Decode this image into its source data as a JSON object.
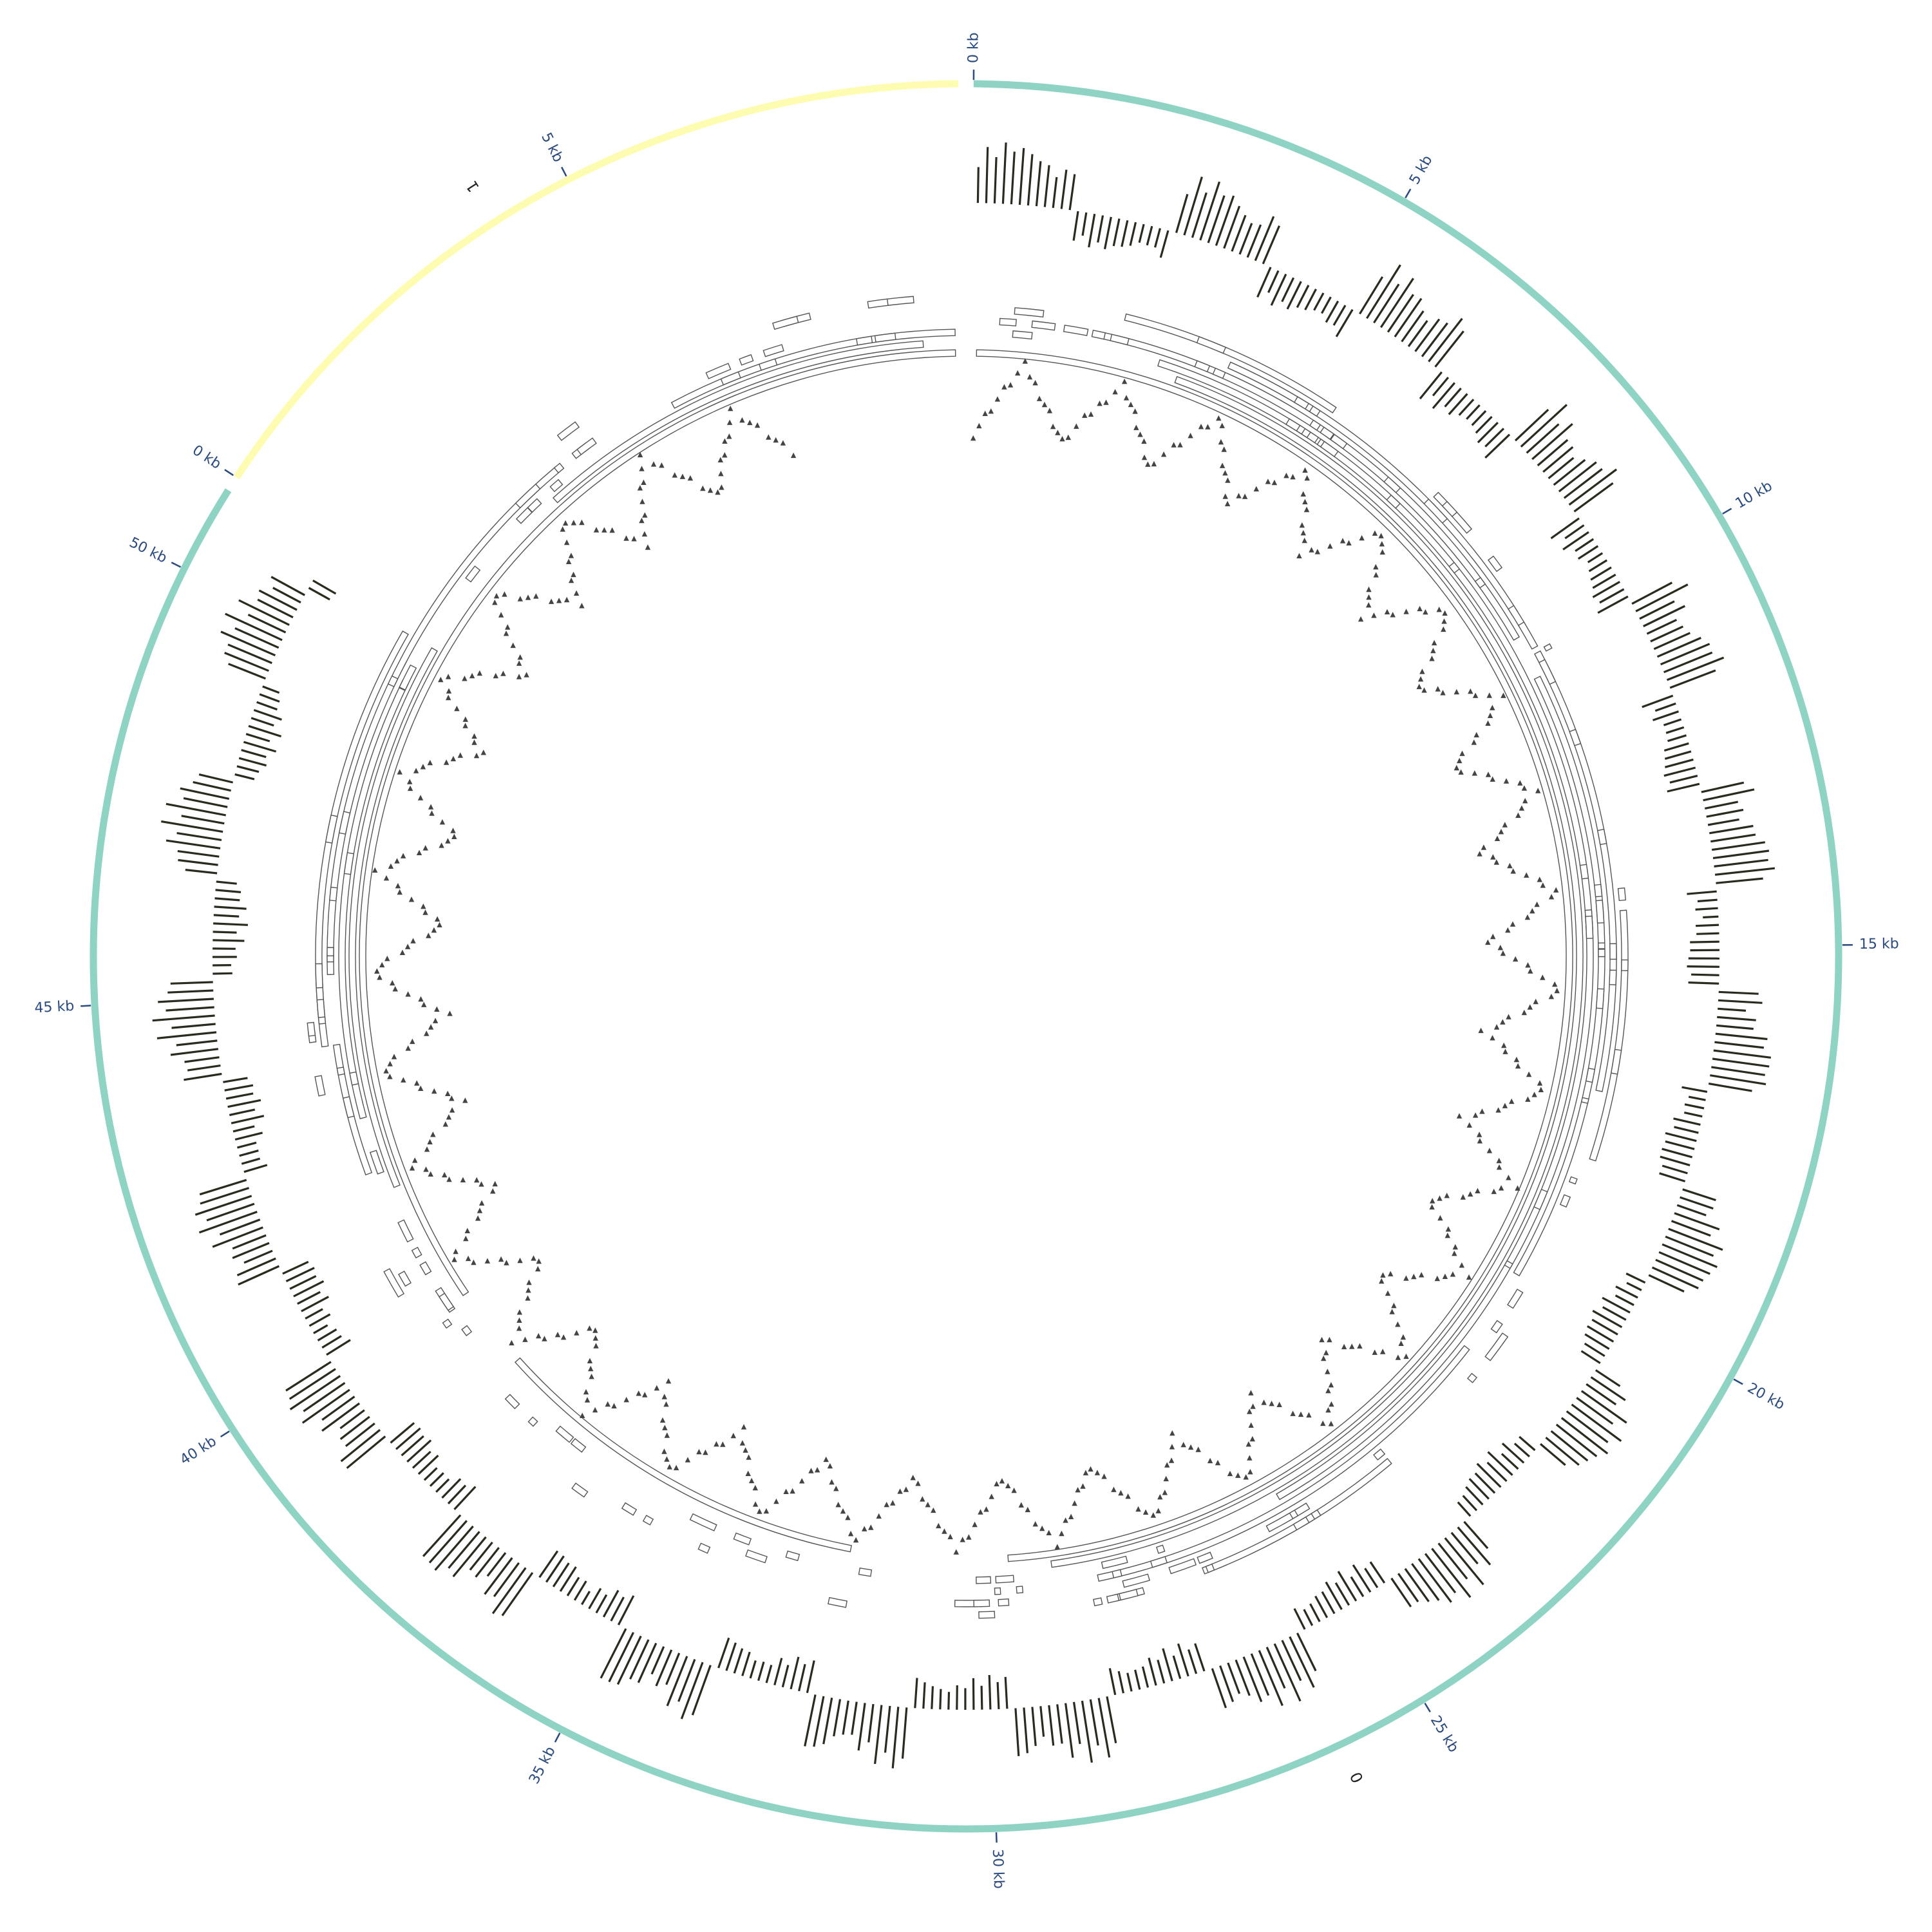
{
  "diagram": {
    "type": "circos-genome-plot",
    "colors": {
      "chrom_1": "#fdfcb0",
      "chrom_0": "#8fd3c4",
      "tick": "#2a4a80",
      "coverage": "#2b2a1e",
      "feature_outline": "#555555",
      "triangles": "#444444"
    },
    "chromosomes": [
      {
        "id": "1",
        "label": "1",
        "length_kb": 9.5,
        "color": "#fdfcb0",
        "ticks": [
          {
            "kb": 0,
            "label": "0 kb"
          },
          {
            "kb": 5,
            "label": "5 kb"
          }
        ]
      },
      {
        "id": "0",
        "label": "0",
        "length_kb": 51,
        "color": "#8fd3c4",
        "ticks": [
          {
            "kb": 0,
            "label": "0 kb"
          },
          {
            "kb": 5,
            "label": "5 kb"
          },
          {
            "kb": 10,
            "label": "10 kb"
          },
          {
            "kb": 15,
            "label": "15 kb"
          },
          {
            "kb": 20,
            "label": "20 kb"
          },
          {
            "kb": 25,
            "label": "25 kb"
          },
          {
            "kb": 30,
            "label": "30 kb"
          },
          {
            "kb": 35,
            "label": "35 kb"
          },
          {
            "kb": 40,
            "label": "40 kb"
          },
          {
            "kb": 45,
            "label": "45 kb"
          },
          {
            "kb": 50,
            "label": "50 kb"
          }
        ]
      }
    ],
    "tracks": [
      {
        "name": "coverage-histogram",
        "style": "bars"
      },
      {
        "name": "gene-features",
        "style": "outlined-boxes"
      },
      {
        "name": "scatter-points",
        "style": "triangles"
      }
    ]
  }
}
